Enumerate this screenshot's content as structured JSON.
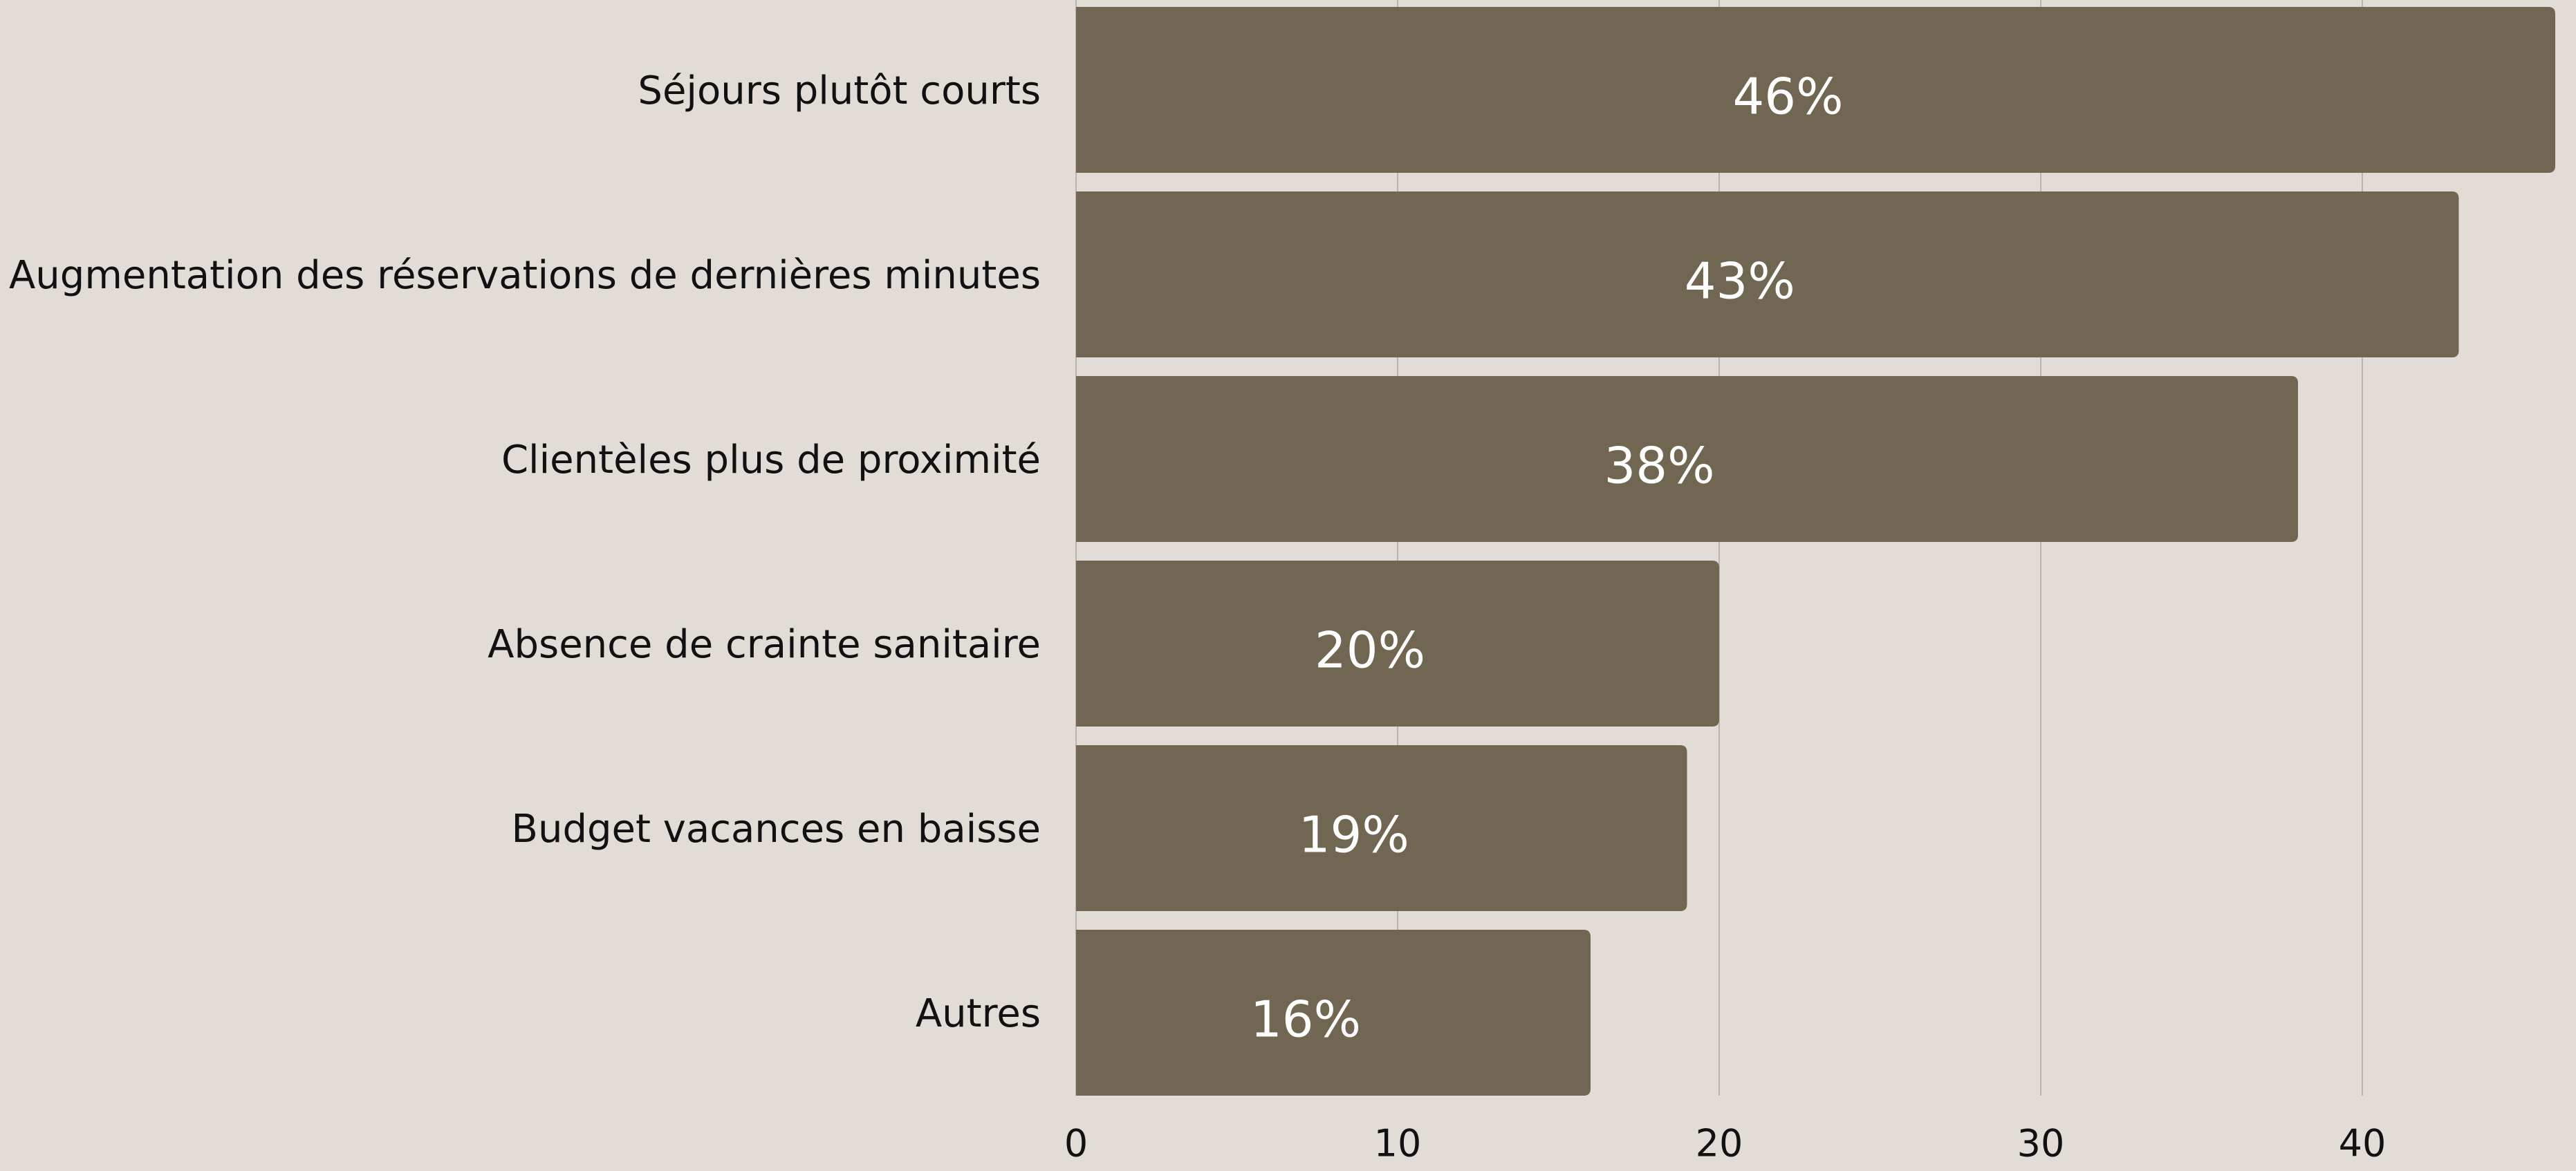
{
  "chart_data": {
    "type": "barh",
    "categories": [
      "Séjours plutôt courts",
      "Augmentation des réservations de dernières minutes",
      "Clientèles plus de proximité",
      "Absence de crainte sanitaire",
      "Budget vacances en baisse",
      "Autres"
    ],
    "values": [
      46,
      43,
      38,
      20,
      19,
      16
    ],
    "value_labels": [
      "46%",
      "43%",
      "38%",
      "20%",
      "19%",
      "16%"
    ],
    "color": "#716651",
    "xlim": [
      0,
      46
    ],
    "xticks": [
      0,
      10,
      20,
      30,
      40
    ],
    "grid": true
  }
}
